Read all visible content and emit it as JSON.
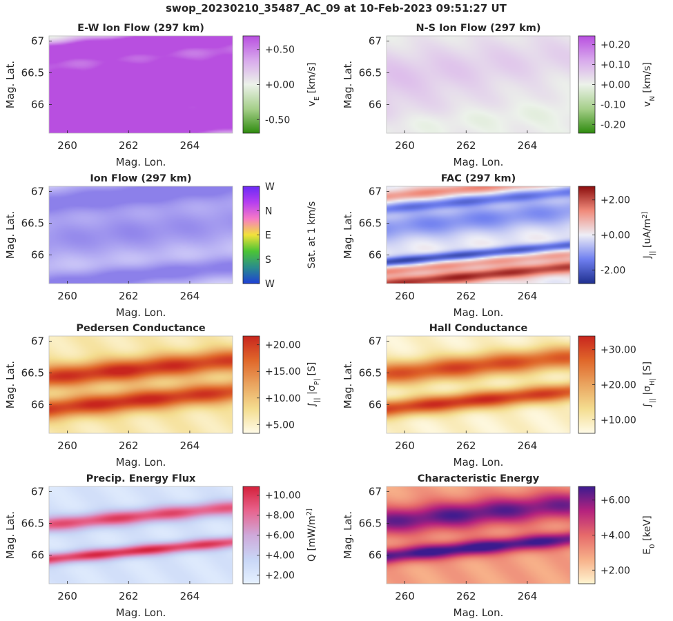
{
  "figure": {
    "suptitle": "swop_20230210_35487_AC_09 at 10-Feb-2023 09:51:27 UT"
  },
  "chart_data": [
    {
      "type": "heatmap",
      "title": "E-W Ion Flow (297 km)",
      "xlabel": "Mag. Lon.",
      "ylabel": "Mag. Lat.",
      "xlim": [
        259.4,
        265.4
      ],
      "ylim": [
        65.55,
        67.08
      ],
      "xticks": [
        "260",
        "262",
        "264"
      ],
      "yticks": [
        "66",
        "66.5",
        "67"
      ],
      "bands": [
        {
          "y": 65.6,
          "x": 262,
          "intensity": 0.95,
          "sigma": 0.15
        },
        {
          "y": 66.05,
          "x": 262,
          "intensity": 0.75,
          "sigma": 0.18
        },
        {
          "y": 66.5,
          "x": 262,
          "intensity": 0.7,
          "sigma": 0.2
        },
        {
          "y": 66.95,
          "x": 262,
          "intensity": 0.85,
          "sigma": 0.12
        }
      ],
      "base": 0.45,
      "colormap": [
        "#2e8b0e",
        "#a6cf8a",
        "#ecf2ea",
        "#d8a9ec",
        "#b84fe0"
      ],
      "colorbar": {
        "label": "v_E [km/s]",
        "tick_labels": [
          "+0.50",
          "+0.00",
          "-0.50"
        ]
      }
    },
    {
      "type": "heatmap",
      "title": "N-S Ion Flow (297 km)",
      "xlabel": "Mag. Lon.",
      "ylabel": "Mag. Lat.",
      "xlim": [
        259.4,
        265.4
      ],
      "ylim": [
        65.55,
        67.08
      ],
      "xticks": [
        "260",
        "262",
        "264"
      ],
      "yticks": [
        "66",
        "66.5",
        "67"
      ],
      "bands": [
        {
          "y": 66.3,
          "x": 259.4,
          "intensity": 0.45,
          "sigma": 0.45
        },
        {
          "y": 65.75,
          "x": 262,
          "intensity": -0.15,
          "sigma": 0.15
        },
        {
          "y": 66.2,
          "x": 265.0,
          "intensity": -0.25,
          "sigma": 0.25
        }
      ],
      "base": 0.0,
      "colormap": [
        "#2e8b0e",
        "#a6cf8a",
        "#ecf2ea",
        "#d8a9ec",
        "#b84fe0"
      ],
      "colorbar": {
        "label": "v_N [km/s]",
        "tick_labels": [
          "+0.20",
          "+0.10",
          "+0.00",
          "-0.10",
          "-0.20"
        ]
      }
    },
    {
      "type": "heatmap",
      "title": "Ion Flow (297 km)",
      "xlabel": "Mag. Lon.",
      "ylabel": "Mag. Lat.",
      "xlim": [
        259.4,
        265.4
      ],
      "ylim": [
        65.55,
        67.08
      ],
      "xticks": [
        "260",
        "262",
        "264"
      ],
      "yticks": [
        "66",
        "66.5",
        "67"
      ],
      "bands": [
        {
          "y": 66.95,
          "x": 262,
          "intensity": 0.8,
          "sigma": 0.15
        },
        {
          "y": 66.35,
          "x": 262,
          "intensity": 0.55,
          "sigma": 0.25
        },
        {
          "y": 65.65,
          "x": 262,
          "intensity": 0.75,
          "sigma": 0.12
        }
      ],
      "base": 0.35,
      "colormap": [
        "#ffffff",
        "#d9d6fa",
        "#b0a8f2",
        "#8c80ea"
      ],
      "colorbar": {
        "label": "Sat. at 1 km/s",
        "tick_labels": [
          "W",
          "N",
          "E",
          "S",
          "W"
        ],
        "colors": [
          "#1f3fd6",
          "#2a8c8c",
          "#4cc435",
          "#f2e23a",
          "#f77bc6",
          "#b63ff0",
          "#6a2af5"
        ]
      }
    },
    {
      "type": "heatmap",
      "title": "FAC (297 km)",
      "xlabel": "Mag. Lon.",
      "ylabel": "Mag. Lat.",
      "xlim": [
        259.4,
        265.4
      ],
      "ylim": [
        65.55,
        67.08
      ],
      "xticks": [
        "260",
        "262",
        "264"
      ],
      "yticks": [
        "66",
        "66.5",
        "67"
      ],
      "bands": [
        {
          "y": 67.05,
          "x": 262,
          "intensity": 0.5,
          "sigma": 0.06
        },
        {
          "y": 66.85,
          "x": 262,
          "intensity": -0.55,
          "sigma": 0.06
        },
        {
          "y": 66.55,
          "x": 262,
          "intensity": -0.45,
          "sigma": 0.15
        },
        {
          "y": 66.0,
          "x": 259.4,
          "intensity": -0.85,
          "sigma": 0.05
        },
        {
          "y": 65.85,
          "x": 259.4,
          "intensity": 0.45,
          "sigma": 0.05
        },
        {
          "y": 65.65,
          "x": 262,
          "intensity": 0.9,
          "sigma": 0.07
        }
      ],
      "base": 0.0,
      "colormap": [
        "#1e2f8e",
        "#6f7ff0",
        "#eeeef6",
        "#f08a7a",
        "#8b0d0d"
      ],
      "colorbar": {
        "label": "J_|| [uA/m^2]",
        "tick_labels": [
          "+2.00",
          "+0.00",
          "-2.00"
        ]
      }
    },
    {
      "type": "heatmap",
      "title": "Pedersen Conductance",
      "xlabel": "Mag. Lon.",
      "ylabel": "Mag. Lat.",
      "xlim": [
        259.4,
        265.4
      ],
      "ylim": [
        65.55,
        67.08
      ],
      "xticks": [
        "260",
        "262",
        "264"
      ],
      "yticks": [
        "66",
        "66.5",
        "67"
      ],
      "bands": [
        {
          "y": 66.55,
          "x": 262,
          "intensity": 0.85,
          "sigma": 0.13
        },
        {
          "y": 66.05,
          "x": 262,
          "intensity": 0.85,
          "sigma": 0.12
        }
      ],
      "base": 0.15,
      "colormap": [
        "#fffbe8",
        "#f4dd90",
        "#eaa560",
        "#e0672a",
        "#c8251e"
      ],
      "colorbar": {
        "label": "∫_|| |σ_P| [S]",
        "tick_labels": [
          "+20.00",
          "+15.00",
          "+10.00",
          "+5.00"
        ]
      }
    },
    {
      "type": "heatmap",
      "title": "Hall Conductance",
      "xlabel": "Mag. Lon.",
      "ylabel": "Mag. Lat.",
      "xlim": [
        259.4,
        265.4
      ],
      "ylim": [
        65.55,
        67.08
      ],
      "xticks": [
        "260",
        "262",
        "264"
      ],
      "yticks": [
        "66",
        "66.5",
        "67"
      ],
      "bands": [
        {
          "y": 66.6,
          "x": 262,
          "intensity": 0.8,
          "sigma": 0.13
        },
        {
          "y": 66.05,
          "x": 262,
          "intensity": 0.9,
          "sigma": 0.1
        }
      ],
      "base": 0.08,
      "colormap": [
        "#fffbe8",
        "#f4dd90",
        "#eaa560",
        "#e0672a",
        "#c8251e"
      ],
      "colorbar": {
        "label": "∫_|| |σ_H| [S]",
        "tick_labels": [
          "+30.00",
          "+20.00",
          "+10.00"
        ]
      }
    },
    {
      "type": "heatmap",
      "title": "Precip. Energy Flux",
      "xlabel": "Mag. Lon.",
      "ylabel": "Mag. Lat.",
      "xlim": [
        259.4,
        265.4
      ],
      "ylim": [
        65.55,
        67.08
      ],
      "xticks": [
        "260",
        "262",
        "264"
      ],
      "yticks": [
        "66",
        "66.5",
        "67"
      ],
      "bands": [
        {
          "y": 66.6,
          "x": 262,
          "intensity": 0.75,
          "sigma": 0.09
        },
        {
          "y": 66.05,
          "x": 262,
          "intensity": 0.85,
          "sigma": 0.07
        }
      ],
      "base": 0.12,
      "colormap": [
        "#e6f1ff",
        "#c8d6f6",
        "#cfa9da",
        "#e8648e",
        "#d4203a"
      ],
      "colorbar": {
        "label": "Q [mW/m^2]",
        "tick_labels": [
          "+10.00",
          "+8.00",
          "+6.00",
          "+4.00",
          "+2.00"
        ]
      }
    },
    {
      "type": "heatmap",
      "title": "Characteristic Energy",
      "xlabel": "Mag. Lon.",
      "ylabel": "Mag. Lat.",
      "xlim": [
        259.4,
        265.4
      ],
      "ylim": [
        65.55,
        67.08
      ],
      "xticks": [
        "260",
        "262",
        "264"
      ],
      "yticks": [
        "66",
        "66.5",
        "67"
      ],
      "bands": [
        {
          "y": 66.65,
          "x": 262,
          "intensity": 0.65,
          "sigma": 0.16
        },
        {
          "y": 66.1,
          "x": 262,
          "intensity": 0.75,
          "sigma": 0.09
        }
      ],
      "base": 0.3,
      "colormap": [
        "#fff5d0",
        "#f7b089",
        "#e66a6a",
        "#b5227e",
        "#3b1b8f"
      ],
      "colorbar": {
        "label": "E_0 [keV]",
        "tick_labels": [
          "+6.00",
          "+4.00",
          "+2.00"
        ]
      }
    }
  ]
}
